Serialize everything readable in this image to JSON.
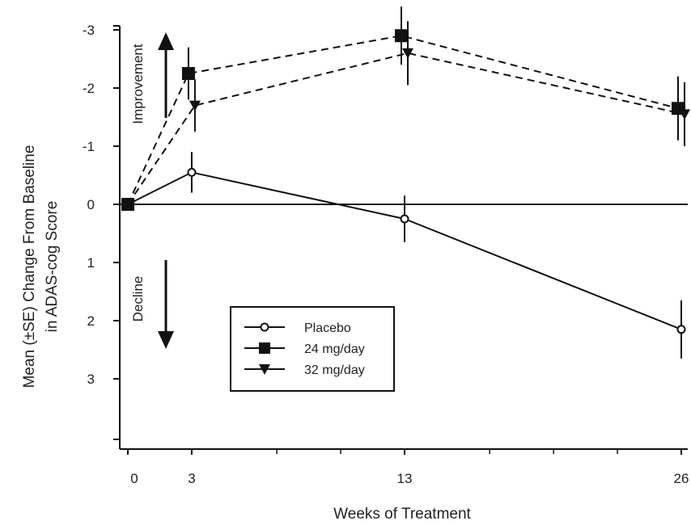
{
  "chart_data": {
    "type": "line",
    "title": "",
    "xlabel": "Weeks of Treatment",
    "ylabel_line1": "Mean (±SE) Change From Baseline",
    "ylabel_line2": "in ADAS-cog Score",
    "x_ticks": [
      0,
      3,
      13,
      26
    ],
    "y_tick_labels": [
      "-3",
      "-2",
      "-1",
      "0",
      "1",
      "2",
      "3"
    ],
    "y_tick_values": [
      -3,
      -2,
      -1,
      0,
      1,
      2,
      3
    ],
    "ylim": [
      -3.4,
      4.0
    ],
    "y_inverted": true,
    "xlim": [
      -0.3,
      26.3
    ],
    "annotations": {
      "improvement": "Improvement",
      "decline": "Decline"
    },
    "legend_position": "lower-center",
    "series": [
      {
        "name": "Placebo",
        "marker": "circle-open",
        "dash": "solid",
        "x": [
          0,
          3,
          13,
          26
        ],
        "y": [
          0,
          -0.55,
          0.25,
          2.15
        ],
        "se": [
          0,
          0.35,
          0.4,
          0.5
        ]
      },
      {
        "name": "24 mg/day",
        "marker": "square",
        "dash": "dashed",
        "x": [
          0,
          3,
          13,
          26
        ],
        "y": [
          0,
          -2.25,
          -2.9,
          -1.65
        ],
        "se": [
          0,
          0.45,
          0.5,
          0.55
        ]
      },
      {
        "name": "32 mg/day",
        "marker": "triangle-down",
        "dash": "dashed",
        "x": [
          0,
          3,
          13,
          26
        ],
        "y": [
          0,
          -1.7,
          -2.6,
          -1.55
        ],
        "se": [
          0,
          0.45,
          0.55,
          0.55
        ]
      }
    ]
  }
}
